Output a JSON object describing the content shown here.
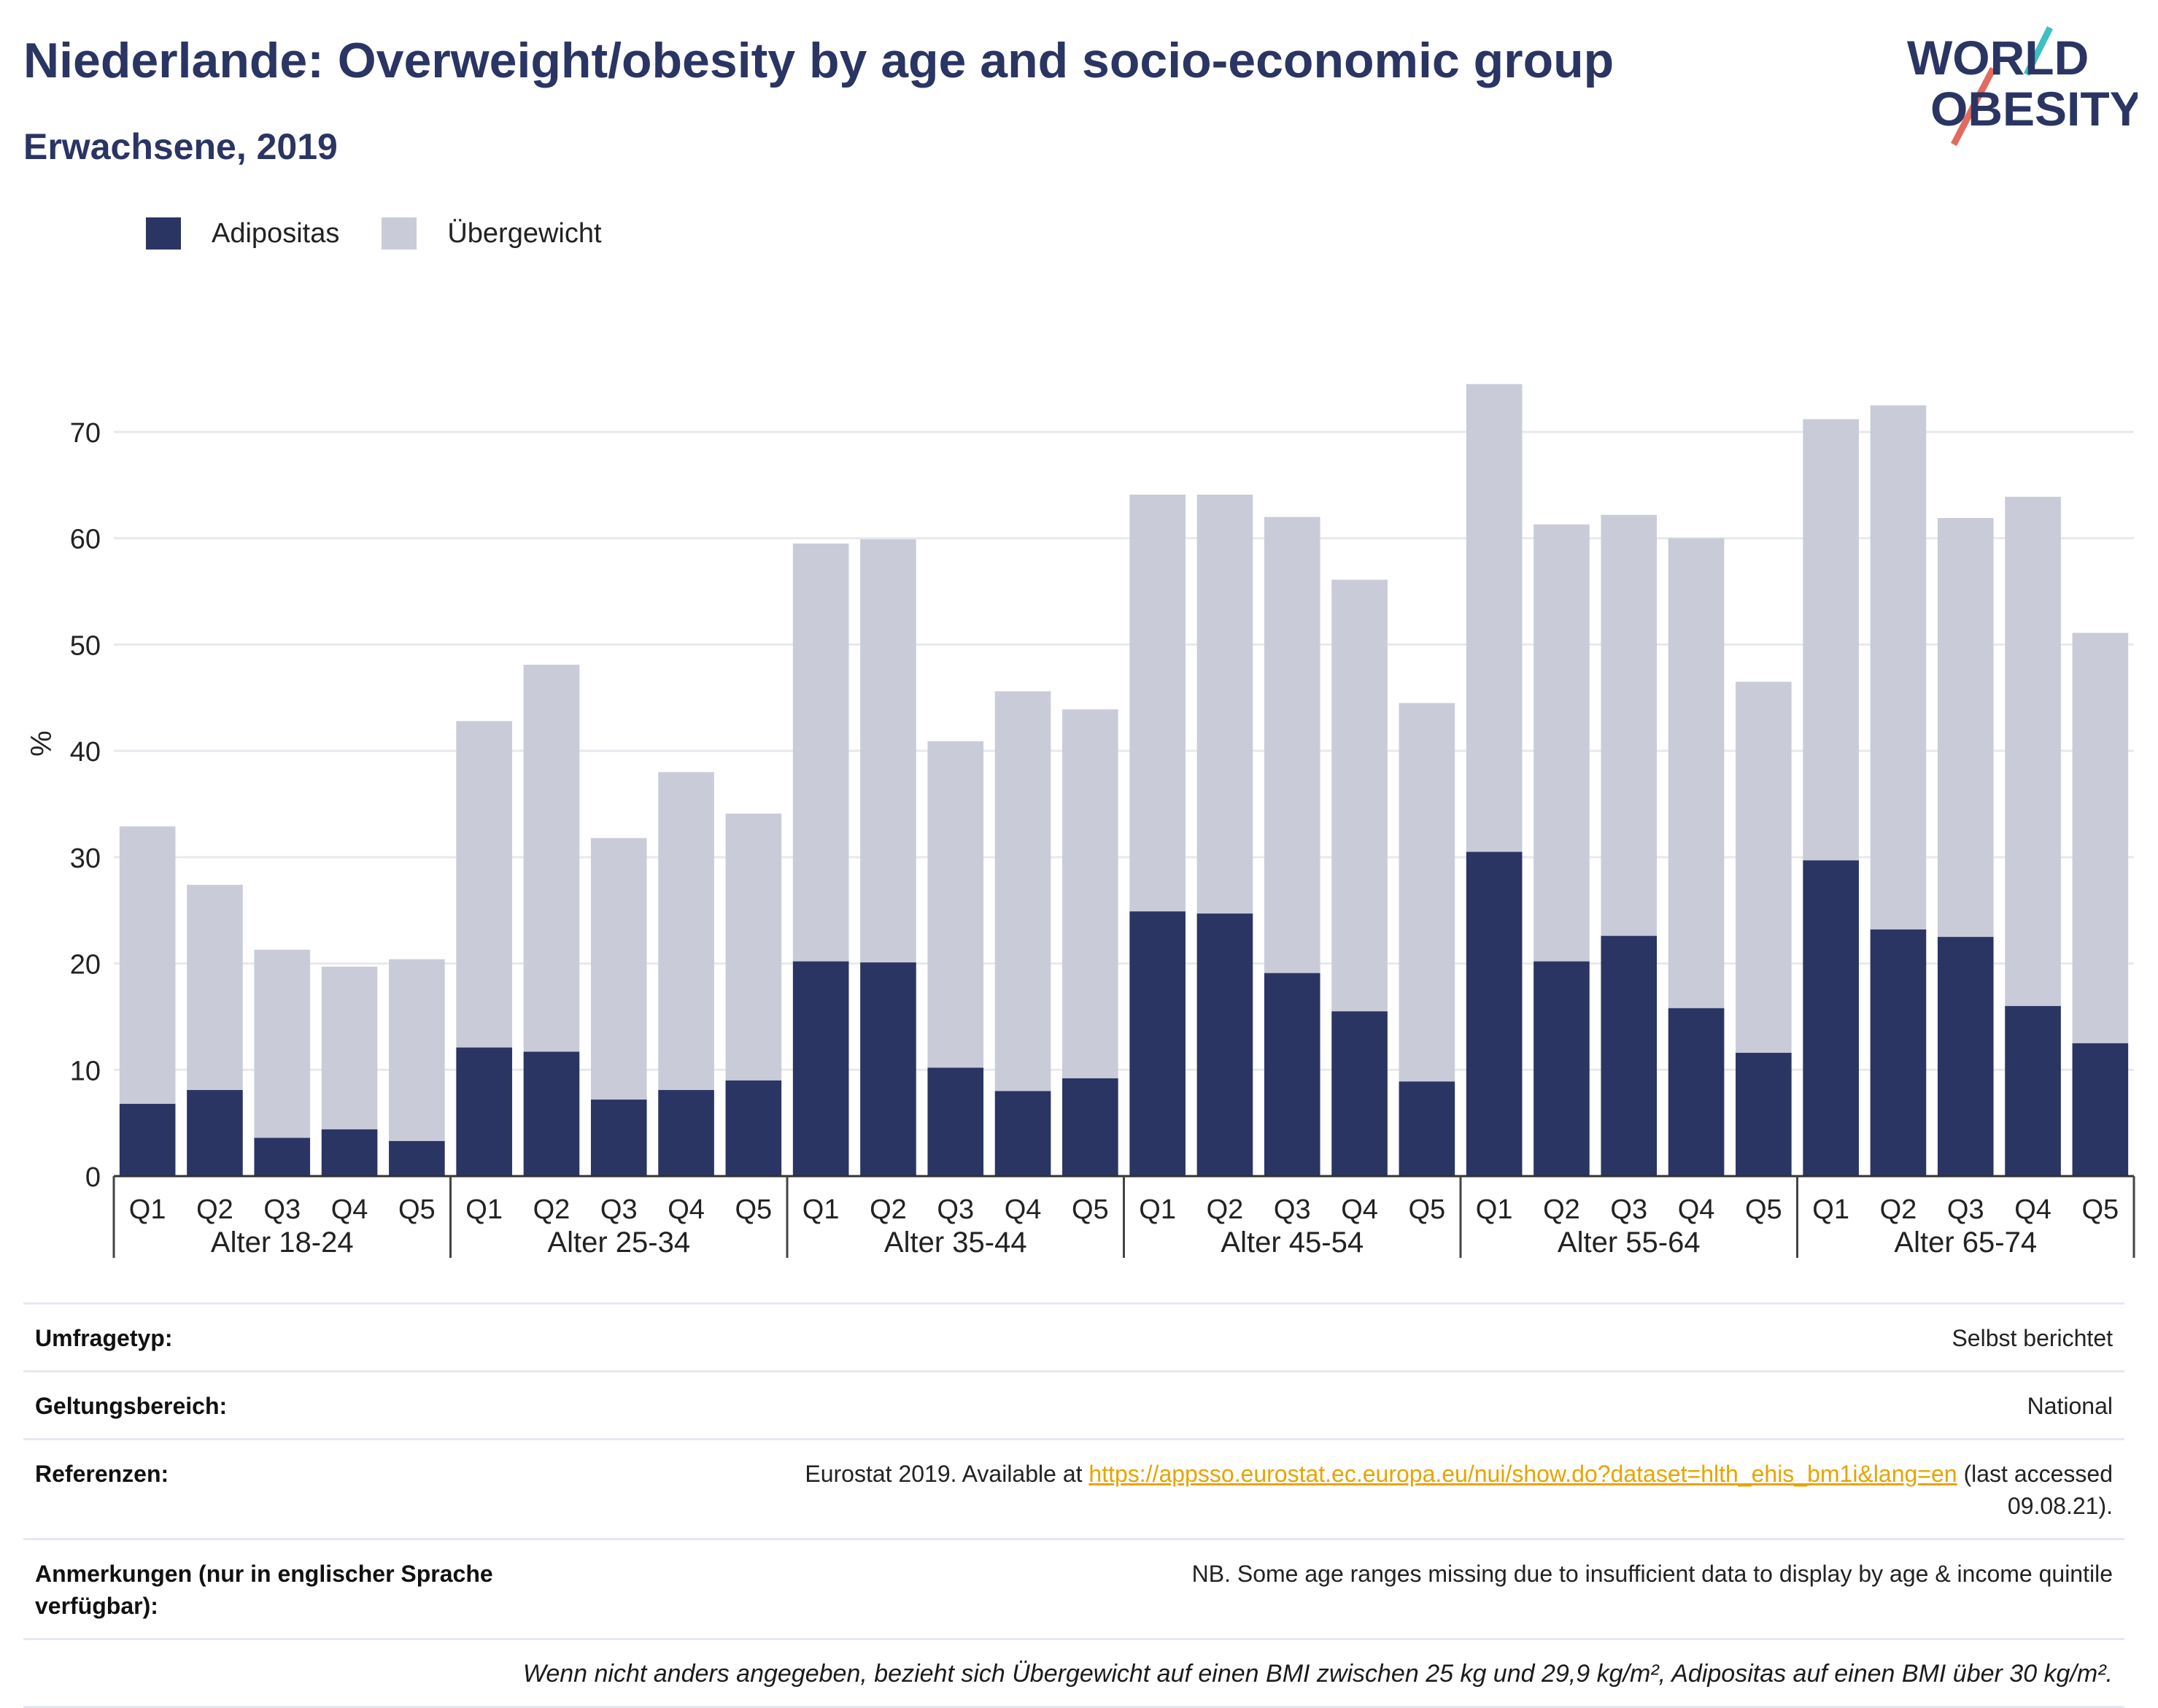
{
  "title": "Niederlande: Overweight/obesity by age and socio-economic group",
  "subtitle": "Erwachsene, 2019",
  "logo": {
    "line1": "WORLD",
    "line2": "OBESITY"
  },
  "colors": {
    "obesity": "#2b3563",
    "overweight": "#c9ccd8",
    "title": "#2b3563",
    "grid": "#e8e9ee",
    "link": "#e7a400"
  },
  "chart_data": {
    "type": "bar",
    "stacked": true,
    "ylabel": "%",
    "ylim": [
      0,
      77
    ],
    "yticks": [
      0,
      10,
      20,
      30,
      40,
      50,
      60,
      70
    ],
    "groups": [
      "Alter 18-24",
      "Alter 25-34",
      "Alter 35-44",
      "Alter 45-54",
      "Alter 55-64",
      "Alter 65-74"
    ],
    "quintiles": [
      "Q1",
      "Q2",
      "Q3",
      "Q4",
      "Q5"
    ],
    "legend": [
      "Adipositas",
      "Übergewicht"
    ],
    "legend_position": "top-left",
    "grid": true,
    "series": [
      {
        "name": "Adipositas",
        "values": [
          6.8,
          8.1,
          3.6,
          4.4,
          3.3,
          12.1,
          11.7,
          7.2,
          8.1,
          9.0,
          20.2,
          20.1,
          10.2,
          8.0,
          9.2,
          24.9,
          24.7,
          19.1,
          15.5,
          8.9,
          30.5,
          20.2,
          22.6,
          15.8,
          11.6,
          29.7,
          23.2,
          22.5,
          16.0,
          12.5
        ]
      },
      {
        "name": "Übergewicht",
        "values": [
          26.1,
          19.3,
          17.7,
          15.3,
          17.1,
          30.7,
          36.4,
          24.6,
          29.9,
          25.1,
          39.3,
          39.8,
          30.7,
          37.6,
          34.7,
          39.2,
          39.4,
          42.9,
          40.6,
          35.6,
          44.0,
          41.1,
          39.6,
          44.2,
          34.9,
          41.5,
          49.3,
          39.4,
          47.9,
          38.6
        ]
      }
    ]
  },
  "info": {
    "survey_label": "Umfragetyp:",
    "survey_value": "Selbst berichtet",
    "scope_label": "Geltungsbereich:",
    "scope_value": "National",
    "ref_label": "Referenzen:",
    "ref_prefix": "Eurostat 2019. Available at ",
    "ref_link": "https://appsso.eurostat.ec.europa.eu/nui/show.do?dataset=hlth_ehis_bm1i&lang=en",
    "ref_suffix": " (last accessed",
    "ref_date": "09.08.21).",
    "notes_label": "Anmerkungen (nur in englischer Sprache verfügbar):",
    "notes_value": "NB. Some age ranges missing due to insufficient data to display by age & income quintile",
    "footnote": "Wenn nicht anders angegeben, bezieht sich Übergewicht auf einen BMI zwischen 25 kg und 29,9 kg/m², Adipositas auf einen BMI über 30 kg/m²."
  }
}
